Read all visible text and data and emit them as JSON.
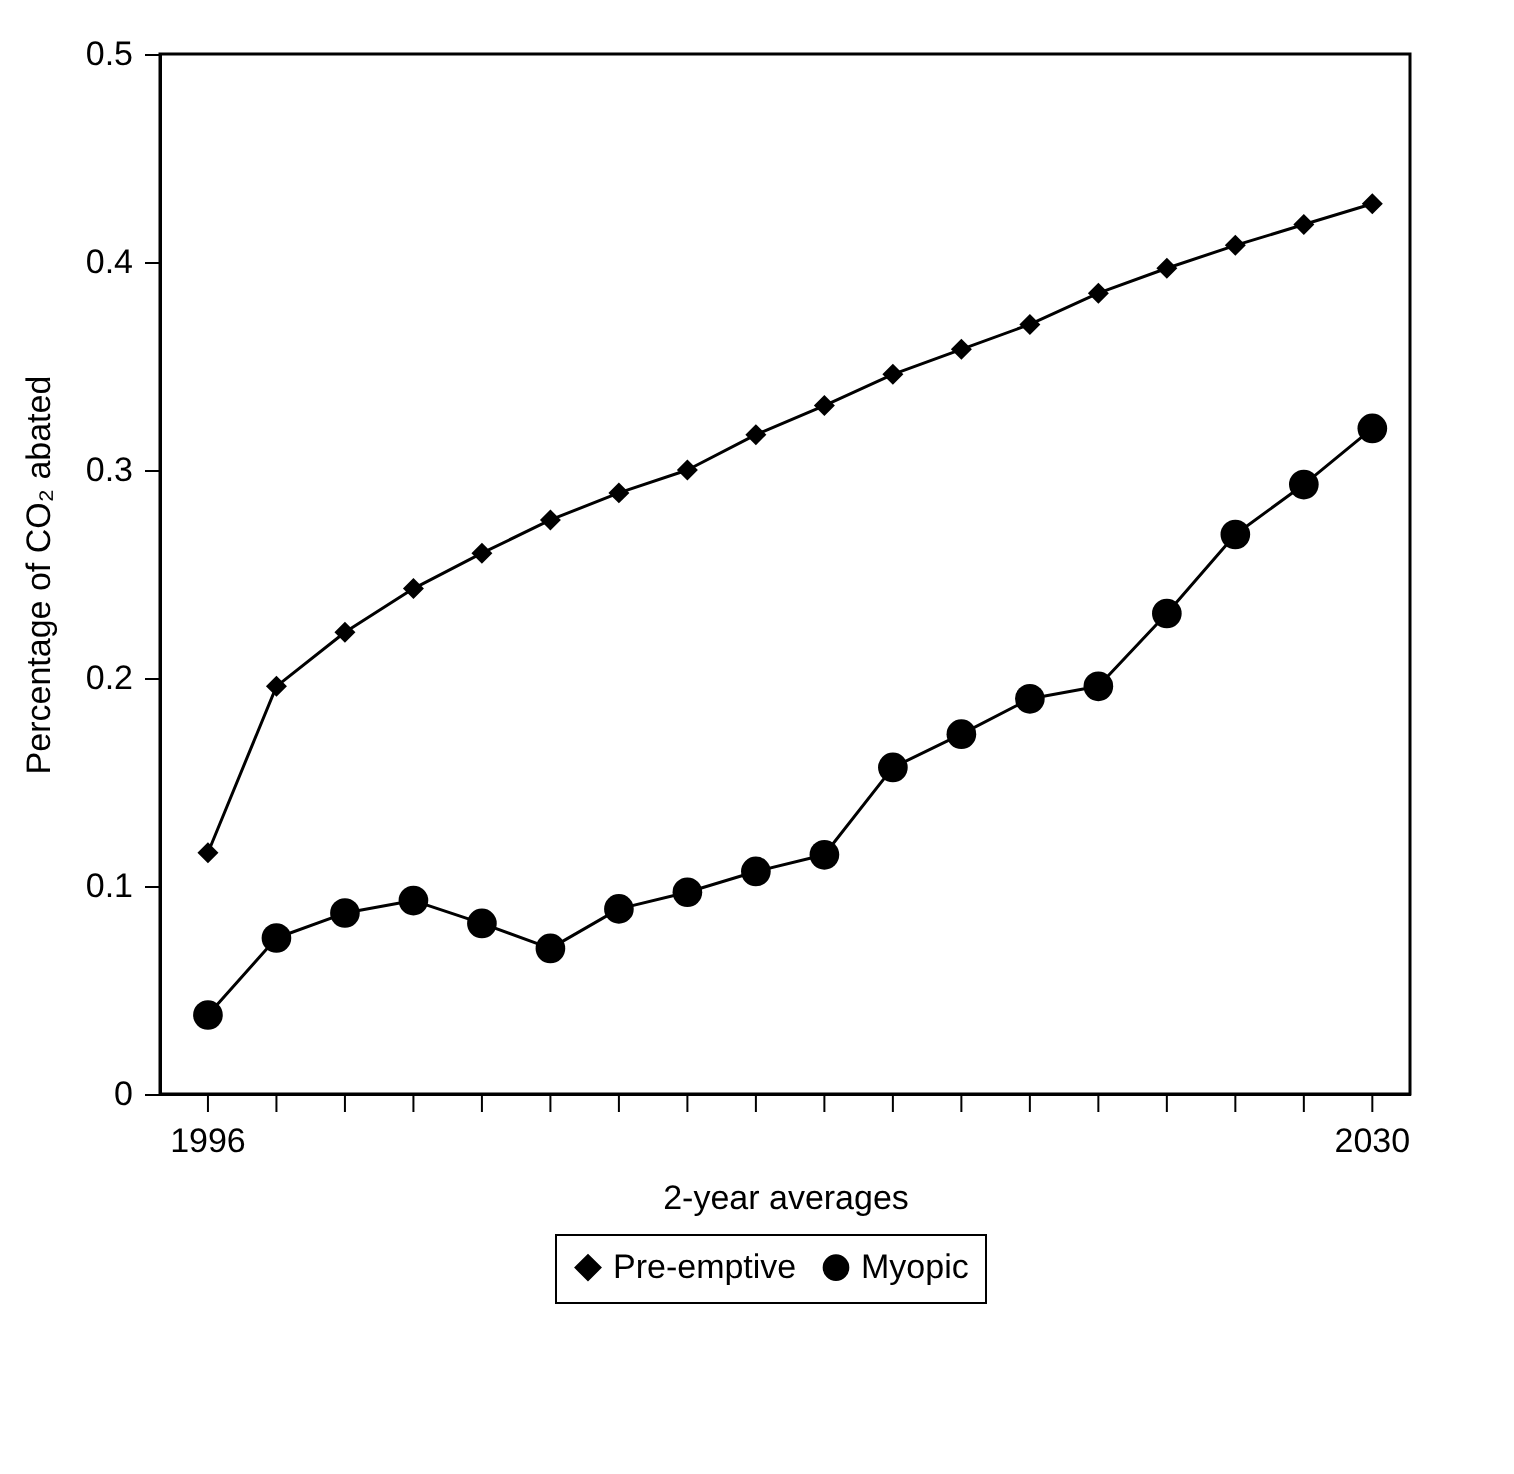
{
  "chart_data": {
    "type": "line",
    "xlabel": "2-year averages",
    "ylabel": "Percentage of CO₂ abated",
    "x": [
      1996,
      1998,
      2000,
      2002,
      2004,
      2006,
      2008,
      2010,
      2012,
      2014,
      2016,
      2018,
      2020,
      2022,
      2024,
      2026,
      2028,
      2030
    ],
    "series": [
      {
        "name": "Pre-emptive",
        "color": "#000000",
        "marker": "diamond",
        "values": [
          0.116,
          0.196,
          0.222,
          0.243,
          0.26,
          0.276,
          0.289,
          0.3,
          0.317,
          0.331,
          0.346,
          0.358,
          0.37,
          0.385,
          0.397,
          0.408,
          0.418,
          0.428
        ]
      },
      {
        "name": "Myopic",
        "color": "#000000",
        "marker": "circle",
        "values": [
          0.038,
          0.075,
          0.087,
          0.093,
          0.082,
          0.07,
          0.089,
          0.097,
          0.107,
          0.115,
          0.157,
          0.173,
          0.19,
          0.196,
          0.231,
          0.269,
          0.293,
          0.32
        ]
      }
    ],
    "xlim": [
      1994.6,
      2031.1
    ],
    "xticks": [
      1996,
      {
        "value": 1998,
        "label": null
      },
      {
        "value": 2000,
        "label": null
      },
      {
        "value": 2002,
        "label": null
      },
      {
        "value": 2004,
        "label": null
      },
      {
        "value": 2006,
        "label": null
      },
      {
        "value": 2008,
        "label": null
      },
      {
        "value": 2010,
        "label": null
      },
      {
        "value": 2012,
        "label": null
      },
      {
        "value": 2014,
        "label": null
      },
      {
        "value": 2016,
        "label": null
      },
      {
        "value": 2018,
        "label": null
      },
      {
        "value": 2020,
        "label": null
      },
      {
        "value": 2022,
        "label": null
      },
      {
        "value": 2024,
        "label": null
      },
      {
        "value": 2026,
        "label": null
      },
      {
        "value": 2028,
        "label": null
      },
      2030
    ],
    "ylim": [
      0,
      0.5
    ],
    "yticks": [
      0,
      0.1,
      0.2,
      0.3,
      0.4,
      0.5
    ],
    "grid": false,
    "legend": "bottom",
    "line_style": "solid"
  }
}
